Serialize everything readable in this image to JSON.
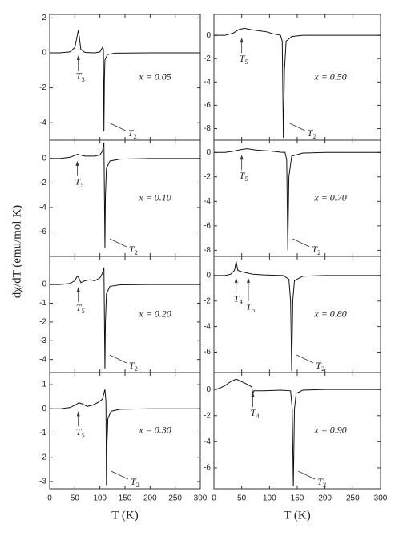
{
  "y_label": "dχ/dT (emu/mol K)",
  "chart_data": [
    {
      "type": "line",
      "label": "x = 0.05",
      "xlim": [
        0,
        300
      ],
      "xticks": [
        0,
        50,
        100,
        150,
        200,
        250,
        300
      ],
      "ylim": [
        -5,
        2.2
      ],
      "yticks": [
        2,
        0,
        -2,
        -4
      ],
      "x": [
        0,
        20,
        40,
        50,
        55,
        57,
        59,
        62,
        70,
        90,
        100,
        105,
        107,
        108,
        109,
        110,
        115,
        130,
        200,
        300
      ],
      "values": [
        0,
        0,
        0.05,
        0.3,
        1.0,
        1.3,
        0.9,
        0.2,
        0.02,
        0,
        0.05,
        0.3,
        0.2,
        -4.5,
        -1.5,
        -0.4,
        -0.1,
        -0.02,
        0,
        0
      ],
      "annotations": [
        {
          "symbol": "T",
          "subscript": "3",
          "at": 57
        },
        {
          "symbol": "T",
          "subscript": "2",
          "at": 108
        }
      ]
    },
    {
      "type": "line",
      "label": "x = 0.10",
      "xlim": [
        0,
        300
      ],
      "xticks": [
        0,
        50,
        100,
        150,
        200,
        250,
        300
      ],
      "ylim": [
        -8,
        1.5
      ],
      "yticks": [
        0,
        -2,
        -4,
        -6
      ],
      "x": [
        0,
        20,
        40,
        50,
        55,
        60,
        70,
        80,
        90,
        100,
        105,
        108,
        110,
        111,
        113,
        120,
        140,
        200,
        300
      ],
      "values": [
        0,
        0,
        0.1,
        0.25,
        0.35,
        0.3,
        0.2,
        0.2,
        0.2,
        0.3,
        0.6,
        1.3,
        -7.3,
        -3,
        -0.8,
        -0.2,
        -0.05,
        0,
        0
      ],
      "annotations": [
        {
          "symbol": "T",
          "subscript": "5",
          "at": 55
        },
        {
          "symbol": "T",
          "subscript": "2",
          "at": 110
        }
      ]
    },
    {
      "type": "line",
      "label": "x = 0.20",
      "xlim": [
        0,
        300
      ],
      "xticks": [
        0,
        50,
        100,
        150,
        200,
        250,
        300
      ],
      "ylim": [
        -4.7,
        1.5
      ],
      "yticks": [
        0,
        -1,
        -2,
        -3,
        -4
      ],
      "x": [
        0,
        20,
        40,
        50,
        55,
        58,
        62,
        70,
        80,
        90,
        100,
        105,
        108,
        110,
        111,
        113,
        120,
        140,
        200,
        300
      ],
      "values": [
        0,
        0,
        0.05,
        0.2,
        0.45,
        0.35,
        0.1,
        0.2,
        0.25,
        0.2,
        0.35,
        0.6,
        0.9,
        -4.5,
        -2,
        -0.5,
        -0.1,
        -0.02,
        0,
        0
      ],
      "annotations": [
        {
          "symbol": "T",
          "subscript": "5",
          "at": 57
        },
        {
          "symbol": "T",
          "subscript": "2",
          "at": 110
        }
      ]
    },
    {
      "type": "line",
      "label": "x = 0.30",
      "xlim": [
        0,
        300
      ],
      "xticks": [
        0,
        50,
        100,
        150,
        200,
        250,
        300
      ],
      "ylim": [
        -3.3,
        1.5
      ],
      "yticks": [
        1,
        0,
        -1,
        -2,
        -3
      ],
      "x": [
        0,
        20,
        40,
        50,
        58,
        65,
        75,
        85,
        95,
        105,
        110,
        112,
        113,
        114,
        116,
        122,
        140,
        200,
        300
      ],
      "values": [
        0,
        0,
        0.05,
        0.15,
        0.25,
        0.2,
        0.1,
        0.15,
        0.25,
        0.4,
        0.8,
        0.3,
        -3.15,
        -1.5,
        -0.4,
        -0.1,
        -0.02,
        0,
        0
      ],
      "annotations": [
        {
          "symbol": "T",
          "subscript": "5",
          "at": 57
        },
        {
          "symbol": "T",
          "subscript": "2",
          "at": 113
        }
      ],
      "x_label": "T (K)"
    },
    {
      "type": "line",
      "label": "x = 0.50",
      "xlim": [
        0,
        300
      ],
      "xticks": [
        0,
        50,
        100,
        150,
        200,
        250,
        300
      ],
      "ylim": [
        -9,
        1.8
      ],
      "yticks": [
        0,
        -2,
        -4,
        -6,
        -8
      ],
      "x": [
        0,
        20,
        35,
        45,
        55,
        65,
        80,
        95,
        105,
        115,
        120,
        123,
        125,
        127,
        130,
        140,
        160,
        200,
        300
      ],
      "values": [
        0,
        0,
        0.2,
        0.5,
        0.6,
        0.5,
        0.4,
        0.3,
        0.15,
        0.05,
        0,
        -0.5,
        -8.8,
        -3,
        -0.5,
        -0.1,
        0,
        0,
        0
      ],
      "annotations": [
        {
          "symbol": "T",
          "subscript": "5",
          "at": 50
        },
        {
          "symbol": "T",
          "subscript": "2",
          "at": 125
        }
      ]
    },
    {
      "type": "line",
      "label": "x = 0.70",
      "xlim": [
        0,
        300
      ],
      "xticks": [
        0,
        50,
        100,
        150,
        200,
        250,
        300
      ],
      "ylim": [
        -8.5,
        1
      ],
      "yticks": [
        0,
        -2,
        -4,
        -6,
        -8
      ],
      "x": [
        0,
        20,
        35,
        50,
        60,
        75,
        90,
        105,
        120,
        128,
        131,
        133,
        135,
        140,
        160,
        200,
        300
      ],
      "values": [
        0,
        0,
        0.1,
        0.25,
        0.3,
        0.2,
        0.15,
        0.1,
        0.02,
        0,
        -0.6,
        -8,
        -2,
        -0.3,
        -0.05,
        0,
        0
      ],
      "annotations": [
        {
          "symbol": "T",
          "subscript": "5",
          "at": 50
        },
        {
          "symbol": "T",
          "subscript": "2",
          "at": 133
        }
      ]
    },
    {
      "type": "line",
      "label": "x = 0.80",
      "xlim": [
        0,
        300
      ],
      "xticks": [
        0,
        50,
        100,
        150,
        200,
        250,
        300
      ],
      "ylim": [
        -7.6,
        1.5
      ],
      "yticks": [
        0,
        -2,
        -4,
        -6
      ],
      "x": [
        0,
        20,
        30,
        37,
        40,
        43,
        50,
        60,
        70,
        90,
        110,
        125,
        135,
        138,
        140,
        142,
        145,
        160,
        200,
        300
      ],
      "values": [
        0,
        0,
        0.1,
        0.4,
        1.1,
        0.4,
        0.3,
        0.2,
        0.1,
        0.05,
        0.02,
        0,
        -0.3,
        -2,
        -7.5,
        -2,
        -0.4,
        -0.05,
        0,
        0
      ],
      "annotations": [
        {
          "symbol": "T",
          "subscript": "4",
          "at": 40
        },
        {
          "symbol": "T",
          "subscript": "5",
          "at": 62
        },
        {
          "symbol": "T",
          "subscript": "2",
          "at": 140
        }
      ]
    },
    {
      "type": "line",
      "label": "x = 0.90",
      "xlim": [
        0,
        300
      ],
      "xticks": [
        0,
        50,
        100,
        150,
        200,
        250,
        300
      ],
      "ylim": [
        -7.6,
        1.3
      ],
      "yticks": [
        0,
        -2,
        -4,
        -6
      ],
      "x": [
        0,
        10,
        20,
        30,
        40,
        50,
        60,
        68,
        70,
        72,
        90,
        120,
        138,
        141,
        143,
        145,
        148,
        160,
        200,
        300
      ],
      "values": [
        0,
        0.1,
        0.3,
        0.6,
        0.8,
        0.6,
        0.4,
        0.2,
        -0.3,
        -0.1,
        -0.1,
        -0.05,
        -0.1,
        -1.5,
        -7.4,
        -1.5,
        -0.3,
        -0.05,
        0,
        0
      ],
      "annotations": [
        {
          "symbol": "T",
          "subscript": "4",
          "at": 70
        },
        {
          "symbol": "T",
          "subscript": "2",
          "at": 143
        }
      ],
      "x_label": "T (K)"
    }
  ]
}
